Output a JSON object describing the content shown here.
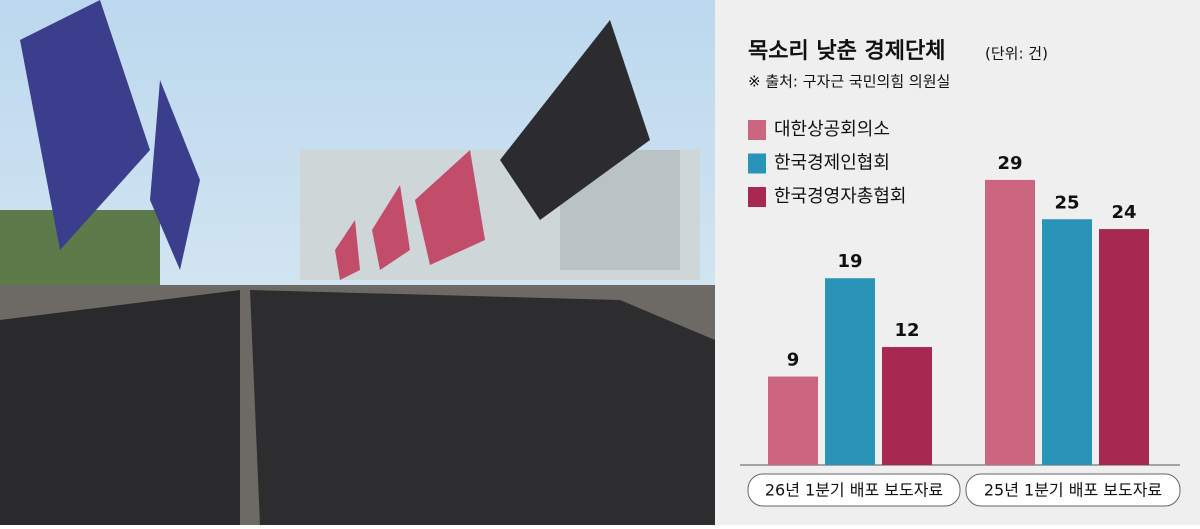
{
  "chart_data": {
    "type": "bar",
    "title": "목소리 낮춘 경제단체",
    "unit": "(단위: 건)",
    "source": "※ 출처: 구자근 국민의힘 의원실",
    "categories": [
      "26년 1분기 배포 보도자료",
      "25년 1분기 배포 보도자료"
    ],
    "series": [
      {
        "name": "대한상공회의소",
        "color": "#cc6680",
        "values": [
          9,
          29
        ]
      },
      {
        "name": "한국경제인협회",
        "color": "#2a93b8",
        "values": [
          19,
          25
        ]
      },
      {
        "name": "한국경영자총협회",
        "color": "#a8294f",
        "values": [
          12,
          24
        ]
      }
    ]
  }
}
